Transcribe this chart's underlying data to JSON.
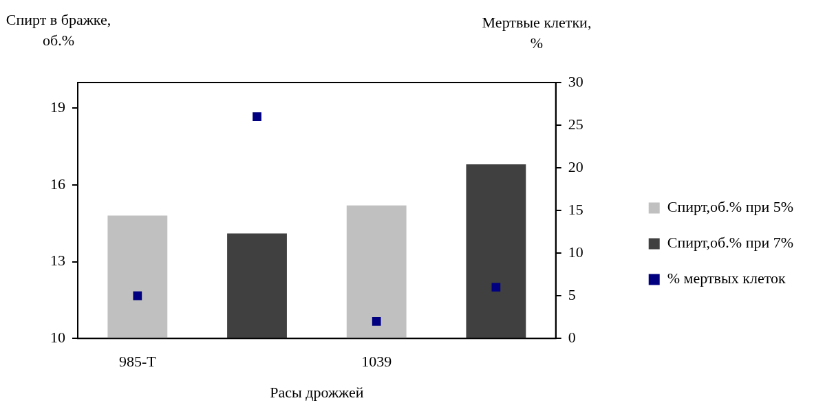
{
  "chart_data": {
    "type": "bar",
    "xlabel": "Расы дрожжей",
    "ylabel": "Спирт в бражке, об.%",
    "y2label": "Мертвые клетки, %",
    "categories": [
      "985-T",
      null,
      "1039",
      null
    ],
    "series": [
      {
        "name": "Спирт,об.% при 5%",
        "color": "#c0c0c0",
        "values": [
          14.8,
          null,
          15.2,
          null
        ]
      },
      {
        "name": "Спирт,об.% при 7%",
        "color": "#404040",
        "values": [
          null,
          14.1,
          null,
          16.8
        ]
      },
      {
        "name": "% мертвых клеток",
        "type": "scatter",
        "axis": "y2",
        "color": "#000080",
        "values": [
          5,
          26,
          2,
          6
        ]
      }
    ],
    "ylim": [
      10,
      20
    ],
    "yticks": [
      10,
      13,
      16,
      19
    ],
    "y2lim": [
      0,
      30
    ],
    "y2ticks": [
      0,
      5,
      10,
      15,
      20,
      25,
      30
    ],
    "grid": false,
    "legend": "right",
    "marker": "square"
  }
}
